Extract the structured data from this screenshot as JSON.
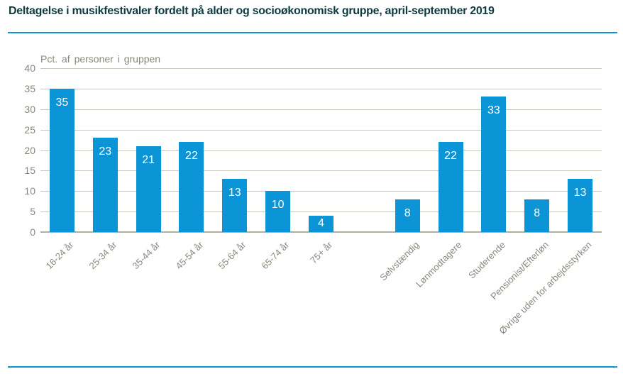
{
  "figure": {
    "title": "Deltagelse i musikfestivaler fordelt på alder og socioøkonomisk gruppe, april-september 2019"
  },
  "colors": {
    "bar": "#0c95d6",
    "accent_line": "#0c95d6",
    "gridline": "#cbc8bd",
    "axis_line": "#b3b0a2",
    "axis_text": "#8a887d",
    "title_text": "#0e3a40",
    "value_label": "#ffffff"
  },
  "chart_data": {
    "type": "bar",
    "title": "Deltagelse i musikfestivaler fordelt på alder og socioøkonomisk gruppe, april-september 2019",
    "xlabel": "",
    "ylabel": "Pct. af personer i gruppen",
    "categories": [
      "16-24 år",
      "25-34 år",
      "35-44 år",
      "45-54 år",
      "55-64 år",
      "65-74 år",
      "75+ år",
      "Selvstændig",
      "Lønmodtagere",
      "Studerende",
      "Pensionist/Efterløn",
      "Øvrige uden for arbejdsstyrken"
    ],
    "values": [
      35,
      23,
      21,
      22,
      13,
      10,
      4,
      8,
      22,
      33,
      8,
      13
    ],
    "group_break_after_index": 6,
    "ylim": [
      0,
      40
    ],
    "yticks": [
      0,
      5,
      10,
      15,
      20,
      25,
      30,
      35,
      40
    ],
    "grid": true,
    "legend": false,
    "value_labels": "inside-top",
    "xtick_rotation_deg": 45
  }
}
